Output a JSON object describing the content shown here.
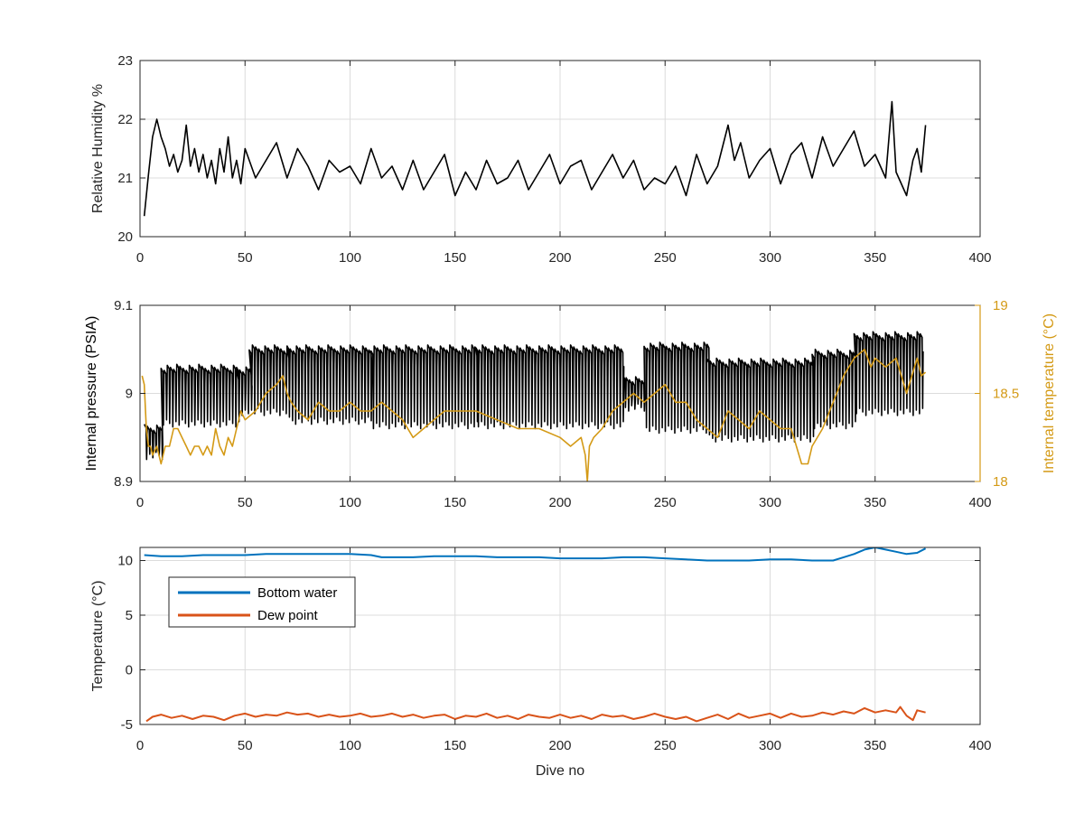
{
  "colors": {
    "black_series": "#000000",
    "temperature_series": "#D49A16",
    "bottom_water": "#0072BD",
    "dew_point": "#D95319",
    "axis": "#262626",
    "grid": "#DCDCDC"
  },
  "chart_data": [
    {
      "type": "line",
      "ylabel": "Relative Humidity %",
      "xlim": [
        0,
        400
      ],
      "ylim": [
        20,
        23
      ],
      "xticks": [
        0,
        50,
        100,
        150,
        200,
        250,
        300,
        350,
        400
      ],
      "yticks": [
        20,
        21,
        22,
        23
      ],
      "xtick_labels": [
        "0",
        "50",
        "100",
        "150",
        "200",
        "250",
        "300",
        "350",
        "400"
      ],
      "ytick_labels": [
        "20",
        "21",
        "22",
        "23"
      ],
      "grid": true,
      "series": [
        {
          "color": "#000000",
          "x": [
            2,
            4,
            6,
            8,
            10,
            12,
            14,
            16,
            18,
            20,
            22,
            24,
            26,
            28,
            30,
            32,
            34,
            36,
            38,
            40,
            42,
            44,
            46,
            48,
            50,
            55,
            60,
            65,
            70,
            75,
            80,
            85,
            90,
            95,
            100,
            105,
            110,
            115,
            120,
            125,
            130,
            135,
            140,
            145,
            150,
            155,
            160,
            165,
            170,
            175,
            180,
            185,
            190,
            195,
            200,
            205,
            210,
            215,
            220,
            225,
            230,
            235,
            240,
            245,
            250,
            255,
            260,
            265,
            270,
            275,
            280,
            283,
            286,
            290,
            295,
            300,
            305,
            310,
            315,
            320,
            325,
            330,
            335,
            340,
            345,
            350,
            355,
            358,
            360,
            365,
            368,
            370,
            372,
            374
          ],
          "y": [
            20.35,
            21.05,
            21.7,
            22.0,
            21.7,
            21.5,
            21.2,
            21.4,
            21.1,
            21.3,
            21.9,
            21.2,
            21.5,
            21.1,
            21.4,
            21.0,
            21.3,
            20.9,
            21.5,
            21.1,
            21.7,
            21.0,
            21.3,
            20.9,
            21.5,
            21.0,
            21.3,
            21.6,
            21.0,
            21.5,
            21.2,
            20.8,
            21.3,
            21.1,
            21.2,
            20.9,
            21.5,
            21.0,
            21.2,
            20.8,
            21.3,
            20.8,
            21.1,
            21.4,
            20.7,
            21.1,
            20.8,
            21.3,
            20.9,
            21.0,
            21.3,
            20.8,
            21.1,
            21.4,
            20.9,
            21.2,
            21.3,
            20.8,
            21.1,
            21.4,
            21.0,
            21.3,
            20.8,
            21.0,
            20.9,
            21.2,
            20.7,
            21.4,
            20.9,
            21.2,
            21.9,
            21.3,
            21.6,
            21.0,
            21.3,
            21.5,
            20.9,
            21.4,
            21.6,
            21.0,
            21.7,
            21.2,
            21.5,
            21.8,
            21.2,
            21.4,
            21.0,
            22.3,
            21.1,
            20.7,
            21.3,
            21.5,
            21.1,
            21.9
          ]
        }
      ]
    },
    {
      "type": "line",
      "ylabel": "Internal pressure (PSIA)",
      "ylabel_right": "Internal temperature (°C)",
      "xlim": [
        0,
        400
      ],
      "ylim": [
        8.9,
        9.1
      ],
      "ylim_right": [
        18,
        19
      ],
      "xticks": [
        0,
        50,
        100,
        150,
        200,
        250,
        300,
        350,
        400
      ],
      "yticks": [
        8.9,
        9.0,
        9.1
      ],
      "yticks_right": [
        18,
        18.5,
        19
      ],
      "xtick_labels": [
        "0",
        "50",
        "100",
        "150",
        "200",
        "250",
        "300",
        "350",
        "400"
      ],
      "ytick_labels": [
        "8.9",
        "9",
        "9.1"
      ],
      "ytick_labels_right": [
        "18",
        "18.5",
        "19"
      ],
      "grid": true,
      "series": [
        {
          "axis": "left",
          "color": "#000000",
          "segments": [
            {
              "x0": 2,
              "x1": 10,
              "hi": 8.965,
              "lo": 8.925
            },
            {
              "x0": 10,
              "x1": 46,
              "hi": 9.033,
              "lo": 8.962
            },
            {
              "x0": 46,
              "x1": 52,
              "hi": 9.03,
              "lo": 8.975
            },
            {
              "x0": 52,
              "x1": 70,
              "hi": 9.055,
              "lo": 8.975
            },
            {
              "x0": 70,
              "x1": 110,
              "hi": 9.055,
              "lo": 8.965
            },
            {
              "x0": 110,
              "x1": 160,
              "hi": 9.055,
              "lo": 8.96
            },
            {
              "x0": 160,
              "x1": 230,
              "hi": 9.055,
              "lo": 8.96
            },
            {
              "x0": 230,
              "x1": 240,
              "hi": 9.02,
              "lo": 8.98
            },
            {
              "x0": 240,
              "x1": 270,
              "hi": 9.058,
              "lo": 8.955
            },
            {
              "x0": 270,
              "x1": 320,
              "hi": 9.04,
              "lo": 8.945
            },
            {
              "x0": 320,
              "x1": 340,
              "hi": 9.05,
              "lo": 8.96
            },
            {
              "x0": 340,
              "x1": 372,
              "hi": 9.07,
              "lo": 8.975
            }
          ]
        },
        {
          "axis": "right",
          "color": "#D49A16",
          "x": [
            1,
            2,
            3,
            4,
            5,
            6,
            8,
            10,
            12,
            14,
            16,
            18,
            20,
            22,
            24,
            26,
            28,
            30,
            32,
            34,
            36,
            38,
            40,
            42,
            44,
            46,
            48,
            50,
            55,
            60,
            65,
            68,
            70,
            72,
            75,
            80,
            85,
            90,
            95,
            100,
            105,
            110,
            115,
            120,
            125,
            130,
            135,
            140,
            145,
            150,
            160,
            170,
            180,
            190,
            200,
            205,
            210,
            212,
            213,
            214,
            216,
            220,
            225,
            230,
            235,
            240,
            245,
            250,
            255,
            260,
            265,
            270,
            275,
            280,
            285,
            290,
            295,
            300,
            305,
            310,
            315,
            318,
            320,
            325,
            330,
            335,
            340,
            345,
            348,
            350,
            355,
            360,
            365,
            370,
            372,
            374
          ],
          "y": [
            18.6,
            18.55,
            18.3,
            18.2,
            18.2,
            18.15,
            18.2,
            18.1,
            18.2,
            18.2,
            18.3,
            18.3,
            18.25,
            18.2,
            18.15,
            18.2,
            18.2,
            18.15,
            18.2,
            18.15,
            18.3,
            18.2,
            18.15,
            18.25,
            18.2,
            18.3,
            18.4,
            18.35,
            18.4,
            18.5,
            18.55,
            18.6,
            18.5,
            18.45,
            18.4,
            18.35,
            18.45,
            18.4,
            18.4,
            18.45,
            18.4,
            18.4,
            18.45,
            18.4,
            18.35,
            18.25,
            18.3,
            18.35,
            18.4,
            18.4,
            18.4,
            18.35,
            18.3,
            18.3,
            18.25,
            18.2,
            18.25,
            18.15,
            18.0,
            18.2,
            18.25,
            18.3,
            18.4,
            18.45,
            18.5,
            18.45,
            18.5,
            18.55,
            18.45,
            18.45,
            18.35,
            18.3,
            18.25,
            18.4,
            18.35,
            18.3,
            18.4,
            18.35,
            18.3,
            18.3,
            18.1,
            18.1,
            18.2,
            18.3,
            18.45,
            18.6,
            18.7,
            18.75,
            18.65,
            18.7,
            18.65,
            18.7,
            18.5,
            18.7,
            18.6,
            18.62
          ]
        }
      ]
    },
    {
      "type": "line",
      "ylabel": "Temperature (°C)",
      "xlabel": "Dive no",
      "xlim": [
        0,
        400
      ],
      "ylim": [
        -5,
        11.2
      ],
      "xticks": [
        0,
        50,
        100,
        150,
        200,
        250,
        300,
        350,
        400
      ],
      "yticks": [
        -5,
        0,
        5,
        10
      ],
      "xtick_labels": [
        "0",
        "50",
        "100",
        "150",
        "200",
        "250",
        "300",
        "350",
        "400"
      ],
      "ytick_labels": [
        "-5",
        "0",
        "5",
        "10"
      ],
      "grid": true,
      "legend": "top-left",
      "series": [
        {
          "name": "Bottom water",
          "color": "#0072BD",
          "x": [
            2,
            10,
            20,
            30,
            40,
            50,
            60,
            70,
            80,
            90,
            100,
            110,
            115,
            120,
            130,
            140,
            150,
            160,
            170,
            180,
            190,
            200,
            210,
            220,
            230,
            240,
            250,
            260,
            270,
            280,
            290,
            300,
            310,
            320,
            330,
            335,
            340,
            345,
            350,
            355,
            360,
            365,
            370,
            374
          ],
          "y": [
            10.5,
            10.4,
            10.4,
            10.5,
            10.5,
            10.5,
            10.6,
            10.6,
            10.6,
            10.6,
            10.6,
            10.5,
            10.3,
            10.3,
            10.3,
            10.4,
            10.4,
            10.4,
            10.3,
            10.3,
            10.3,
            10.2,
            10.2,
            10.2,
            10.3,
            10.3,
            10.2,
            10.1,
            10.0,
            10.0,
            10.0,
            10.1,
            10.1,
            10.0,
            10.0,
            10.3,
            10.6,
            11.0,
            11.2,
            11.0,
            10.8,
            10.6,
            10.7,
            11.1
          ]
        },
        {
          "name": "Dew point",
          "color": "#D95319",
          "x": [
            3,
            6,
            10,
            15,
            20,
            25,
            30,
            35,
            40,
            45,
            50,
            55,
            60,
            65,
            70,
            75,
            80,
            85,
            90,
            95,
            100,
            105,
            110,
            115,
            120,
            125,
            130,
            135,
            140,
            145,
            150,
            155,
            160,
            165,
            170,
            175,
            180,
            185,
            190,
            195,
            200,
            205,
            210,
            215,
            220,
            225,
            230,
            235,
            240,
            245,
            250,
            255,
            260,
            265,
            270,
            275,
            280,
            285,
            290,
            295,
            300,
            305,
            310,
            315,
            320,
            325,
            330,
            335,
            340,
            345,
            350,
            355,
            360,
            362,
            365,
            368,
            370,
            374
          ],
          "y": [
            -4.7,
            -4.3,
            -4.1,
            -4.4,
            -4.2,
            -4.5,
            -4.2,
            -4.3,
            -4.6,
            -4.2,
            -4.0,
            -4.3,
            -4.1,
            -4.2,
            -3.9,
            -4.1,
            -4.0,
            -4.3,
            -4.1,
            -4.3,
            -4.2,
            -4.0,
            -4.3,
            -4.2,
            -4.0,
            -4.3,
            -4.1,
            -4.4,
            -4.2,
            -4.1,
            -4.5,
            -4.2,
            -4.3,
            -4.0,
            -4.4,
            -4.2,
            -4.5,
            -4.1,
            -4.3,
            -4.4,
            -4.1,
            -4.4,
            -4.2,
            -4.5,
            -4.1,
            -4.3,
            -4.2,
            -4.5,
            -4.3,
            -4.0,
            -4.3,
            -4.5,
            -4.3,
            -4.7,
            -4.4,
            -4.1,
            -4.5,
            -4.0,
            -4.4,
            -4.2,
            -4.0,
            -4.4,
            -4.0,
            -4.3,
            -4.2,
            -3.9,
            -4.1,
            -3.8,
            -4.0,
            -3.5,
            -3.9,
            -3.7,
            -3.9,
            -3.4,
            -4.2,
            -4.6,
            -3.7,
            -3.9
          ]
        }
      ]
    }
  ]
}
